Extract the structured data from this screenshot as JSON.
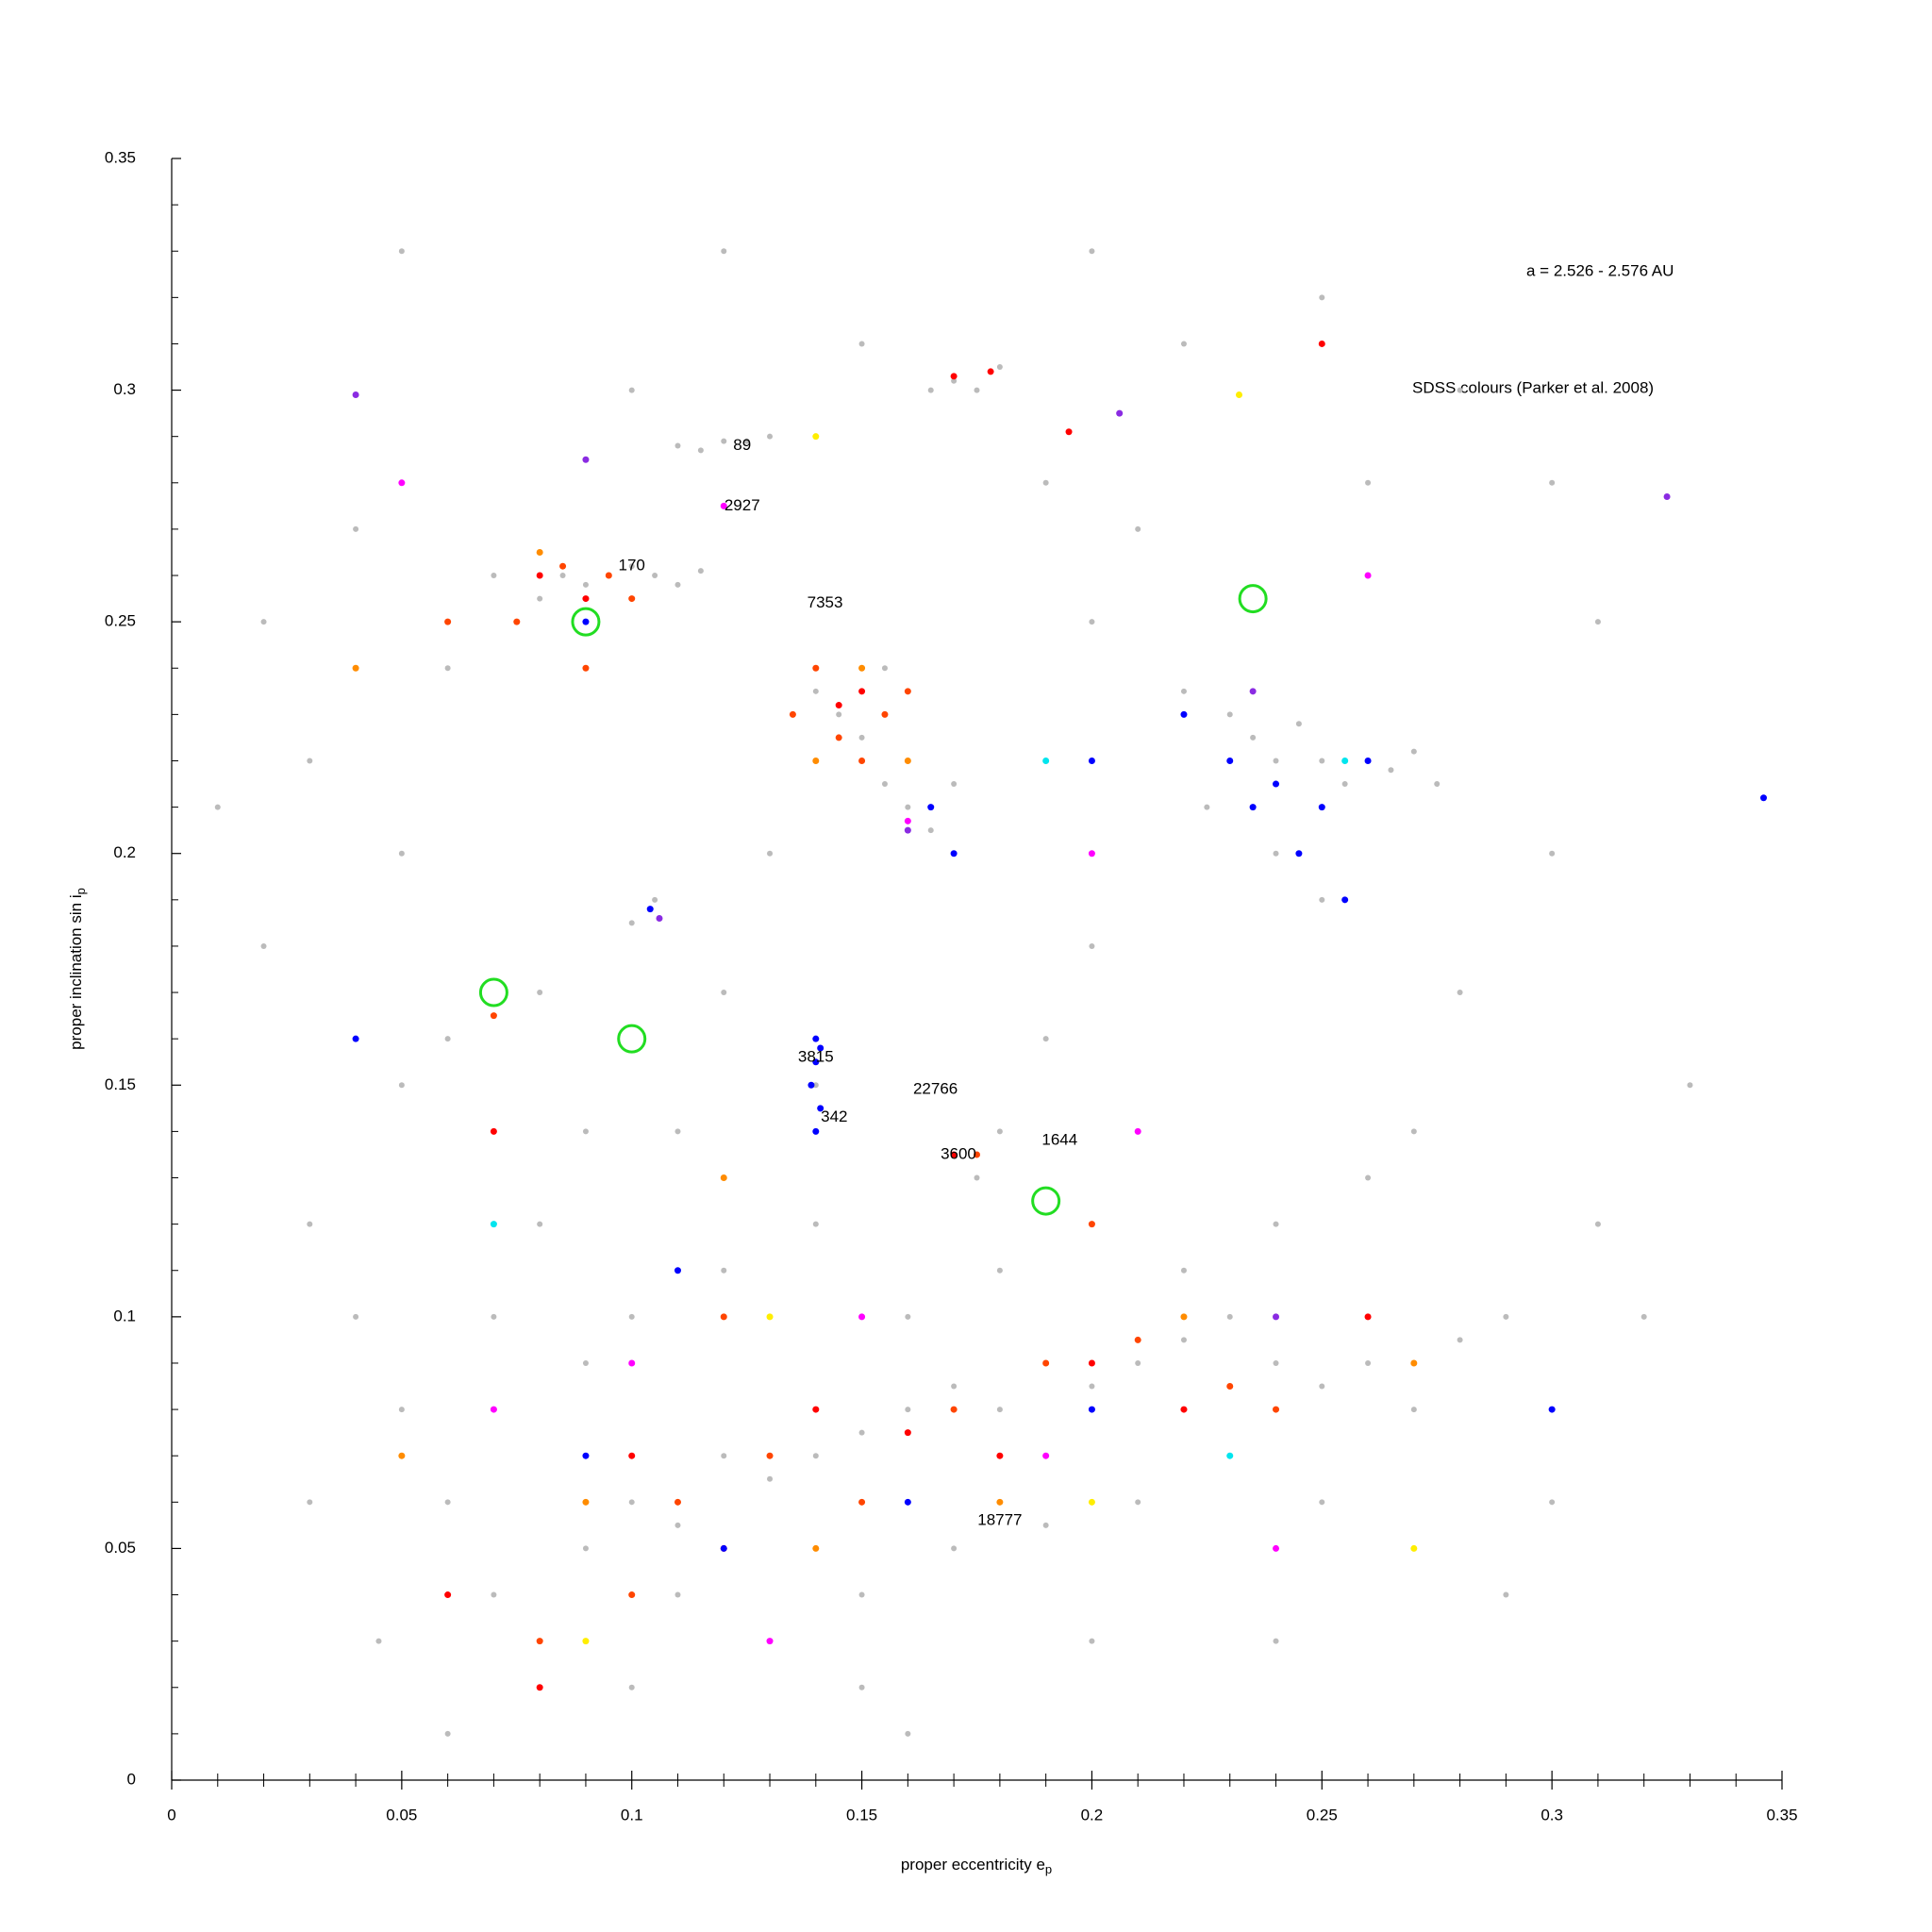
{
  "chart_data": {
    "type": "scatter",
    "annotation_range": "a = 2.526 - 2.576 AU",
    "annotation_source": "SDSS colours (Parker et al. 2008)",
    "x_label": "proper eccentricity e",
    "x_label_sub": "p",
    "y_label": "proper inclination sin i",
    "y_label_sub": "p",
    "xlim": [
      0,
      0.35
    ],
    "ylim": [
      0,
      0.35
    ],
    "xticks": [
      0,
      0.05,
      0.1,
      0.15,
      0.2,
      0.25,
      0.3,
      0.35
    ],
    "yticks": [
      0,
      0.05,
      0.1,
      0.15,
      0.2,
      0.25,
      0.3,
      0.35
    ],
    "xminorticks": [
      0.01,
      0.02,
      0.03,
      0.04,
      0.06,
      0.07,
      0.08,
      0.09,
      0.11,
      0.12,
      0.13,
      0.14,
      0.16,
      0.17,
      0.18,
      0.19,
      0.21,
      0.22,
      0.23,
      0.24,
      0.26,
      0.27,
      0.28,
      0.29,
      0.31,
      0.32,
      0.33,
      0.34
    ],
    "yminorticks": [
      0.01,
      0.02,
      0.03,
      0.04,
      0.06,
      0.07,
      0.08,
      0.09,
      0.11,
      0.12,
      0.13,
      0.14,
      0.16,
      0.17,
      0.18,
      0.19,
      0.21,
      0.22,
      0.23,
      0.24,
      0.26,
      0.27,
      0.28,
      0.29,
      0.31,
      0.32,
      0.33,
      0.34
    ],
    "series": [
      {
        "color": "#bbbbbb",
        "x": [
          0.02,
          0.03,
          0.04,
          0.05,
          0.06,
          0.07,
          0.08,
          0.085,
          0.09,
          0.1,
          0.105,
          0.11,
          0.115,
          0.12,
          0.115,
          0.125,
          0.13,
          0.11,
          0.14,
          0.145,
          0.15,
          0.155,
          0.16,
          0.165,
          0.17,
          0.155,
          0.175,
          0.17,
          0.18,
          0.165,
          0.23,
          0.235,
          0.24,
          0.245,
          0.25,
          0.255,
          0.26,
          0.265,
          0.27,
          0.275,
          0.22,
          0.225,
          0.24,
          0.25,
          0.2,
          0.19,
          0.18,
          0.17,
          0.175,
          0.14,
          0.14,
          0.141,
          0.12,
          0.1,
          0.105,
          0.08,
          0.06,
          0.05,
          0.03,
          0.04,
          0.05,
          0.06,
          0.07,
          0.08,
          0.09,
          0.1,
          0.11,
          0.12,
          0.13,
          0.14,
          0.15,
          0.16,
          0.17,
          0.18,
          0.19,
          0.2,
          0.21,
          0.22,
          0.23,
          0.24,
          0.25,
          0.26,
          0.27,
          0.28,
          0.29,
          0.1,
          0.12,
          0.14,
          0.16,
          0.18,
          0.2,
          0.22,
          0.24,
          0.26,
          0.08,
          0.09,
          0.11,
          0.13,
          0.15,
          0.17,
          0.19,
          0.21,
          0.23,
          0.25,
          0.27,
          0.15,
          0.1,
          0.2,
          0.3,
          0.31,
          0.3,
          0.31,
          0.28,
          0.25,
          0.2,
          0.15,
          0.1,
          0.05,
          0.02,
          0.01,
          0.33,
          0.32,
          0.12,
          0.13,
          0.11,
          0.09,
          0.07,
          0.03,
          0.045,
          0.2,
          0.21,
          0.19,
          0.22,
          0.26,
          0.3,
          0.28,
          0.27,
          0.29,
          0.24,
          0.16,
          0.06
        ],
        "values": [
          0.25,
          0.22,
          0.27,
          0.2,
          0.24,
          0.26,
          0.255,
          0.26,
          0.258,
          0.262,
          0.26,
          0.258,
          0.261,
          0.289,
          0.287,
          0.289,
          0.29,
          0.288,
          0.235,
          0.23,
          0.225,
          0.24,
          0.21,
          0.205,
          0.215,
          0.215,
          0.3,
          0.302,
          0.305,
          0.3,
          0.23,
          0.225,
          0.22,
          0.228,
          0.22,
          0.215,
          0.22,
          0.218,
          0.222,
          0.215,
          0.235,
          0.21,
          0.2,
          0.19,
          0.18,
          0.16,
          0.14,
          0.135,
          0.13,
          0.16,
          0.15,
          0.145,
          0.17,
          0.185,
          0.19,
          0.17,
          0.16,
          0.15,
          0.12,
          0.1,
          0.08,
          0.06,
          0.04,
          0.03,
          0.05,
          0.06,
          0.055,
          0.07,
          0.065,
          0.07,
          0.075,
          0.08,
          0.085,
          0.08,
          0.09,
          0.085,
          0.09,
          0.095,
          0.1,
          0.09,
          0.085,
          0.09,
          0.08,
          0.095,
          0.1,
          0.1,
          0.11,
          0.12,
          0.1,
          0.11,
          0.12,
          0.11,
          0.12,
          0.13,
          0.12,
          0.09,
          0.04,
          0.03,
          0.04,
          0.05,
          0.055,
          0.06,
          0.07,
          0.06,
          0.05,
          0.02,
          0.02,
          0.03,
          0.06,
          0.12,
          0.2,
          0.25,
          0.3,
          0.32,
          0.33,
          0.31,
          0.3,
          0.33,
          0.18,
          0.21,
          0.15,
          0.1,
          0.33,
          0.2,
          0.14,
          0.14,
          0.1,
          0.06,
          0.03,
          0.25,
          0.27,
          0.28,
          0.31,
          0.28,
          0.28,
          0.17,
          0.14,
          0.04,
          0.03,
          0.01,
          0.01
        ]
      },
      {
        "color": "#ff0000",
        "x": [
          0.17,
          0.178,
          0.195,
          0.08,
          0.09,
          0.145,
          0.15,
          0.07,
          0.1,
          0.12,
          0.14,
          0.16,
          0.18,
          0.2,
          0.22,
          0.08,
          0.25,
          0.17,
          0.06,
          0.26
        ],
        "values": [
          0.303,
          0.304,
          0.291,
          0.26,
          0.255,
          0.232,
          0.235,
          0.14,
          0.07,
          0.05,
          0.08,
          0.075,
          0.07,
          0.09,
          0.08,
          0.02,
          0.31,
          0.135,
          0.04,
          0.1
        ]
      },
      {
        "color": "#ff4500",
        "x": [
          0.085,
          0.095,
          0.1,
          0.075,
          0.14,
          0.145,
          0.155,
          0.15,
          0.16,
          0.135,
          0.06,
          0.09,
          0.11,
          0.13,
          0.15,
          0.17,
          0.19,
          0.21,
          0.23,
          0.1,
          0.08,
          0.12,
          0.2,
          0.175,
          0.07,
          0.24
        ],
        "values": [
          0.262,
          0.26,
          0.255,
          0.25,
          0.24,
          0.225,
          0.23,
          0.22,
          0.235,
          0.23,
          0.25,
          0.24,
          0.06,
          0.07,
          0.06,
          0.08,
          0.09,
          0.095,
          0.085,
          0.04,
          0.03,
          0.1,
          0.12,
          0.135,
          0.165,
          0.08
        ]
      },
      {
        "color": "#ff8c00",
        "x": [
          0.08,
          0.15,
          0.14,
          0.16,
          0.09,
          0.14,
          0.18,
          0.22,
          0.27,
          0.05,
          0.04,
          0.12
        ],
        "values": [
          0.265,
          0.24,
          0.22,
          0.22,
          0.06,
          0.05,
          0.06,
          0.1,
          0.09,
          0.07,
          0.24,
          0.13
        ]
      },
      {
        "color": "#ff00ff",
        "x": [
          0.12,
          0.16,
          0.2,
          0.1,
          0.15,
          0.19,
          0.24,
          0.07,
          0.21,
          0.05,
          0.26,
          0.13
        ],
        "values": [
          0.275,
          0.207,
          0.2,
          0.09,
          0.1,
          0.07,
          0.05,
          0.08,
          0.14,
          0.28,
          0.26,
          0.03
        ]
      },
      {
        "color": "#0000ff",
        "x": [
          0.14,
          0.14,
          0.139,
          0.141,
          0.14,
          0.141,
          0.09,
          0.104,
          0.22,
          0.23,
          0.24,
          0.25,
          0.26,
          0.245,
          0.255,
          0.235,
          0.165,
          0.17,
          0.2,
          0.12,
          0.16,
          0.2,
          0.09,
          0.11,
          0.3,
          0.346,
          0.04
        ],
        "values": [
          0.16,
          0.155,
          0.15,
          0.145,
          0.14,
          0.158,
          0.25,
          0.188,
          0.23,
          0.22,
          0.215,
          0.21,
          0.22,
          0.2,
          0.19,
          0.21,
          0.21,
          0.2,
          0.22,
          0.05,
          0.06,
          0.08,
          0.07,
          0.11,
          0.08,
          0.212,
          0.16
        ]
      },
      {
        "color": "#8a2be2",
        "x": [
          0.325,
          0.206,
          0.09,
          0.235,
          0.106,
          0.16,
          0.04,
          0.24
        ],
        "values": [
          0.277,
          0.295,
          0.285,
          0.235,
          0.186,
          0.205,
          0.299,
          0.1
        ]
      },
      {
        "color": "#ffee00",
        "x": [
          0.14,
          0.232,
          0.13,
          0.09,
          0.2,
          0.27
        ],
        "values": [
          0.29,
          0.299,
          0.1,
          0.03,
          0.06,
          0.05
        ]
      },
      {
        "color": "#00e5ee",
        "x": [
          0.255,
          0.07,
          0.19,
          0.23
        ],
        "values": [
          0.22,
          0.12,
          0.22,
          0.07
        ]
      }
    ],
    "circles": {
      "color": "#22dd22",
      "x": [
        0.09,
        0.07,
        0.1,
        0.235,
        0.19
      ],
      "values": [
        0.25,
        0.17,
        0.16,
        0.255,
        0.125
      ]
    },
    "labels": [
      {
        "text": "89",
        "x": 0.124,
        "y": 0.288
      },
      {
        "text": "2927",
        "x": 0.124,
        "y": 0.275
      },
      {
        "text": "170",
        "x": 0.1,
        "y": 0.262
      },
      {
        "text": "7353",
        "x": 0.142,
        "y": 0.254
      },
      {
        "text": "3815",
        "x": 0.14,
        "y": 0.156
      },
      {
        "text": "22766",
        "x": 0.166,
        "y": 0.149
      },
      {
        "text": "342",
        "x": 0.144,
        "y": 0.143
      },
      {
        "text": "3600",
        "x": 0.171,
        "y": 0.135
      },
      {
        "text": "1644",
        "x": 0.193,
        "y": 0.138
      },
      {
        "text": "18777",
        "x": 0.18,
        "y": 0.056
      }
    ]
  }
}
